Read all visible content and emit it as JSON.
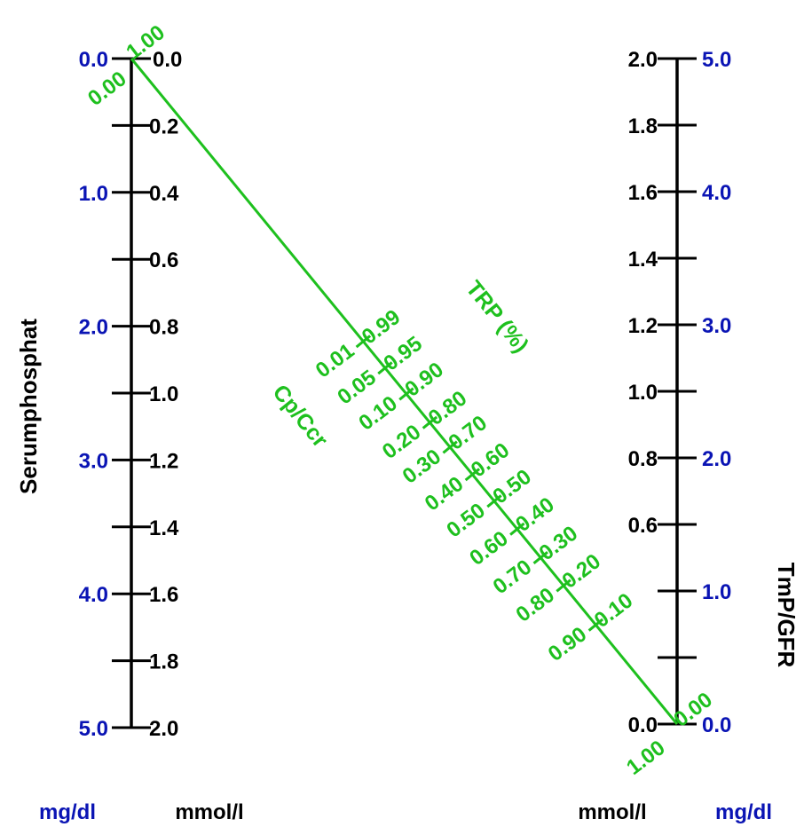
{
  "colors": {
    "axis": "#000000",
    "mgdl": "#0a14b4",
    "ratio": "#1ec01e"
  },
  "left_axis": {
    "title": "Serumphosphat",
    "mmol_unit": "mmol/l",
    "mgdl_unit": "mg/dl",
    "mmol_ticks": [
      "0.0",
      "0.2",
      "0.4",
      "0.6",
      "0.8",
      "1.0",
      "1.2",
      "1.4",
      "1.6",
      "1.8",
      "2.0"
    ],
    "mgdl_ticks": [
      "0.0",
      "1.0",
      "2.0",
      "3.0",
      "4.0",
      "5.0"
    ]
  },
  "right_axis": {
    "title": "TmP/GFR",
    "mmol_unit": "mmol/l",
    "mgdl_unit": "mg/dl",
    "mmol_ticks": [
      "0.0",
      "0.6",
      "0.8",
      "1.0",
      "1.2",
      "1.4",
      "1.6",
      "1.8",
      "2.0"
    ],
    "mgdl_ticks": [
      "0.0",
      "1.0",
      "2.0",
      "3.0",
      "4.0",
      "5.0"
    ]
  },
  "diagonal": {
    "cp_ccr_label": "Cp/Ccr",
    "trp_label": "TRP (%)",
    "cp_ccr_ticks": [
      "0.00",
      "0.01",
      "0.05",
      "0.10",
      "0.20",
      "0.30",
      "0.40",
      "0.50",
      "0.60",
      "0.70",
      "0.80",
      "0.90",
      "1.00"
    ],
    "trp_ticks": [
      "1.00",
      "0.99",
      "0.95",
      "0.90",
      "0.80",
      "0.70",
      "0.60",
      "0.50",
      "0.40",
      "0.30",
      "0.20",
      "0.10",
      "0.00"
    ]
  }
}
